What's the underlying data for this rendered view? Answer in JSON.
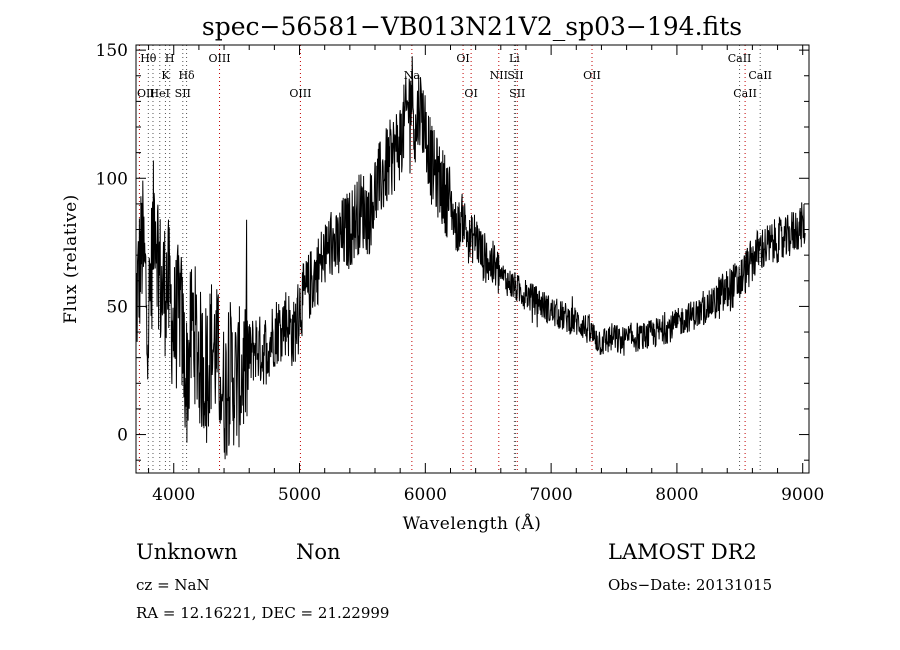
{
  "chart_data": {
    "type": "line",
    "title": "spec−56581−VB013N21V2_sp03−194.fits",
    "xlabel": "Wavelength (Å)",
    "ylabel": "Flux (relative)",
    "xlim": [
      3700,
      9050
    ],
    "ylim": [
      -15,
      152
    ],
    "xticks": [
      4000,
      5000,
      6000,
      7000,
      8000,
      9000
    ],
    "yticks": [
      0,
      50,
      100,
      150
    ],
    "grid": false,
    "series": [
      {
        "x": [
          3700,
          3750,
          3800,
          3850,
          3900,
          3950,
          4000,
          4050,
          4100,
          4150,
          4200,
          4250,
          4300,
          4350,
          4400,
          4450,
          4500,
          4550,
          4600,
          4650,
          4700,
          4750,
          4800,
          4850,
          4900,
          4950,
          5000,
          5050,
          5100,
          5150,
          5200,
          5250,
          5300,
          5350,
          5400,
          5450,
          5500,
          5550,
          5600,
          5650,
          5700,
          5750,
          5800,
          5850,
          5900,
          5920,
          5950,
          6000,
          6050,
          6100,
          6150,
          6200,
          6250,
          6300,
          6350,
          6400,
          6450,
          6500,
          6550,
          6600,
          6650,
          6700,
          6750,
          6800,
          6850,
          6900,
          6950,
          7000,
          7050,
          7100,
          7150,
          7200,
          7250,
          7300,
          7350,
          7400,
          7450,
          7500,
          7550,
          7600,
          7650,
          7700,
          7750,
          7800,
          7850,
          7900,
          7950,
          8000,
          8050,
          8100,
          8150,
          8200,
          8250,
          8300,
          8350,
          8400,
          8450,
          8500,
          8550,
          8600,
          8650,
          8700,
          8750,
          8800,
          8850,
          8900,
          8950,
          9000
        ],
        "y": [
          50,
          75,
          45,
          90,
          55,
          60,
          40,
          50,
          20,
          45,
          30,
          25,
          35,
          30,
          15,
          25,
          20,
          25,
          30,
          35,
          32,
          35,
          40,
          42,
          45,
          38,
          50,
          55,
          60,
          65,
          70,
          75,
          72,
          78,
          80,
          85,
          88,
          85,
          95,
          100,
          105,
          110,
          115,
          125,
          135,
          115,
          130,
          120,
          105,
          100,
          95,
          90,
          80,
          85,
          75,
          78,
          70,
          68,
          65,
          62,
          60,
          58,
          56,
          55,
          53,
          52,
          50,
          48,
          47,
          46,
          45,
          44,
          43,
          40,
          38,
          36,
          37,
          38,
          36,
          37,
          38,
          38,
          38,
          39,
          40,
          41,
          42,
          43,
          45,
          46,
          47,
          48,
          50,
          52,
          54,
          56,
          58,
          60,
          64,
          68,
          72,
          73,
          74,
          76,
          75,
          78,
          80,
          82
        ]
      }
    ],
    "line_markers": [
      {
        "label": "Hθ",
        "wave": 3798,
        "row": 1
      },
      {
        "label": "H",
        "wave": 3968,
        "row": 1
      },
      {
        "label": "OIII",
        "wave": 4364,
        "row": 1
      },
      {
        "label": "OI",
        "wave": 6300,
        "row": 1
      },
      {
        "label": "Li",
        "wave": 6708,
        "row": 1
      },
      {
        "label": "CaII",
        "wave": 8498,
        "row": 1
      },
      {
        "label": "K",
        "wave": 3934,
        "row": 2
      },
      {
        "label": "Hδ",
        "wave": 4102,
        "row": 2
      },
      {
        "label": "Na",
        "wave": 5893,
        "row": 2
      },
      {
        "label": "NII",
        "wave": 6584,
        "row": 2
      },
      {
        "label": "SII",
        "wave": 6717,
        "row": 2
      },
      {
        "label": "OII",
        "wave": 7325,
        "row": 2
      },
      {
        "label": "CaII",
        "wave": 8662,
        "row": 2
      },
      {
        "label": "OII",
        "wave": 3727,
        "row": 3
      },
      {
        "label": "HeI",
        "wave": 3889,
        "row": 3
      },
      {
        "label": "SII",
        "wave": 4072,
        "row": 3
      },
      {
        "label": "OIII",
        "wave": 5007,
        "row": 3
      },
      {
        "label": "OI",
        "wave": 6364,
        "row": 3
      },
      {
        "label": "SII",
        "wave": 6731,
        "row": 3
      },
      {
        "label": "CaII",
        "wave": 8542,
        "row": 3
      }
    ],
    "red_lines": [
      3727,
      4364,
      5007,
      5893,
      6300,
      6364,
      6584,
      6731,
      7325,
      8542
    ],
    "gray_lines": [
      3798,
      3835,
      3889,
      3934,
      3968,
      4072,
      4102,
      6708,
      6717,
      8498,
      8662
    ]
  },
  "info": {
    "object_class": "Unknown",
    "subclass": "Non",
    "survey": "LAMOST DR2",
    "cz": "cz = NaN",
    "obs_date": "Obs−Date: 20131015",
    "coords": "RA =   12.16221, DEC =   21.22999"
  }
}
